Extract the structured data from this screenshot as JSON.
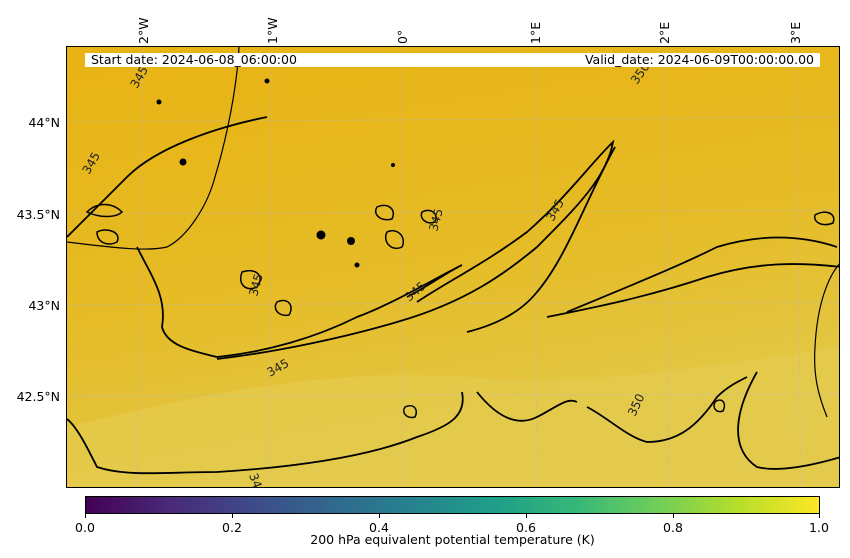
{
  "map": {
    "start_label": "Start date: 2024-06-08_06:00:00",
    "valid_label": "Valid_date: 2024-06-09T00:00:00.00",
    "lon_ticks": [
      "2°W",
      "1°W",
      "0°",
      "1°E",
      "2°E",
      "3°E"
    ],
    "lat_ticks": [
      "44°N",
      "43.5°N",
      "43°N",
      "42.5°N"
    ],
    "contour_labels": [
      "345",
      "345",
      "345",
      "345",
      "345",
      "345",
      "350",
      "345",
      "350",
      "345"
    ],
    "fill_colors": [
      "#e7b416",
      "#e3be2b",
      "#e3c845"
    ],
    "contour_color": "#000000"
  },
  "colorbar": {
    "label": "200 hPa equivalent potential temperature (K)",
    "ticks": [
      "0.0",
      "0.2",
      "0.4",
      "0.6",
      "0.8",
      "1.0"
    ],
    "range": [
      0.0,
      1.0
    ],
    "colormap": "viridis"
  }
}
